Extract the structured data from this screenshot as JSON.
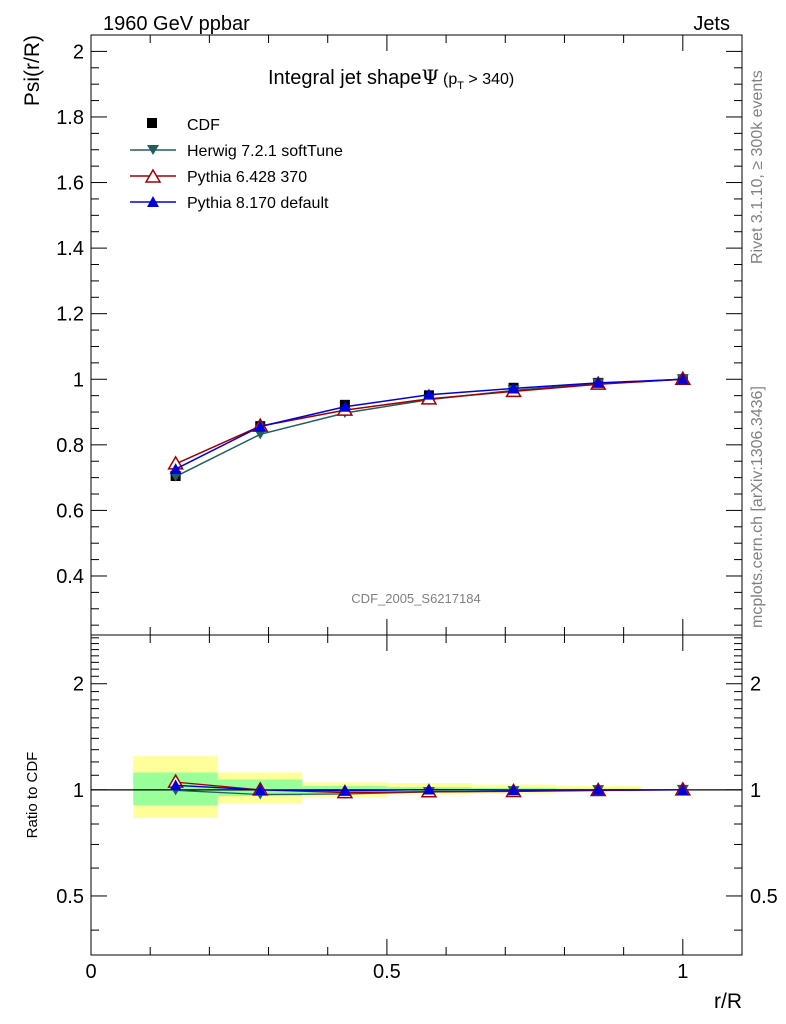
{
  "header": {
    "left": "1960 GeV ppbar",
    "right": "Jets"
  },
  "side": {
    "rivet": "Rivet 3.1.10, ≥ 300k events",
    "mcplots": "mcplots.cern.ch [arXiv:1306.3436]"
  },
  "plot_title": {
    "main": "Integral jet shape",
    "psi": "Ψ",
    "open_paren": "(p",
    "sub": "T",
    "cut": " > 340)"
  },
  "analysis_label": "CDF_2005_S6217184",
  "legend": [
    {
      "key": "cdf",
      "label": "CDF"
    },
    {
      "key": "herwig",
      "label": "Herwig 7.2.1 softTune"
    },
    {
      "key": "py6",
      "label": "Pythia 6.428 370"
    },
    {
      "key": "py8",
      "label": "Pythia 8.170 default"
    }
  ],
  "colors": {
    "cdf": "#000000",
    "herwig": "#1f5f5f",
    "py6": "#a00000",
    "py8": "#0000dd",
    "band_outer": "#ffff99",
    "band_inner": "#99ff99"
  },
  "chart_data": [
    {
      "type": "line",
      "title": "Integral jet shape Ψ (pT > 340)",
      "xlabel": "r/R",
      "ylabel": "Psi(r/R)",
      "xlim": [
        0,
        1.1
      ],
      "ylim": [
        0.22,
        2.05
      ],
      "xticks": [
        {
          "v": 0,
          "label": "0"
        },
        {
          "v": 0.5,
          "label": "0.5"
        },
        {
          "v": 1,
          "label": "1"
        }
      ],
      "yticks": [
        {
          "v": 0.4,
          "label": "0.4"
        },
        {
          "v": 0.6,
          "label": "0.6"
        },
        {
          "v": 0.8,
          "label": "0.8"
        },
        {
          "v": 1.0,
          "label": "1"
        },
        {
          "v": 1.2,
          "label": "1.2"
        },
        {
          "v": 1.4,
          "label": "1.4"
        },
        {
          "v": 1.6,
          "label": "1.6"
        },
        {
          "v": 1.8,
          "label": "1.8"
        },
        {
          "v": 2.0,
          "label": "2"
        }
      ],
      "x": [
        0.143,
        0.286,
        0.429,
        0.571,
        0.714,
        0.857,
        1.0
      ],
      "series": [
        {
          "key": "cdf",
          "name": "CDF",
          "marker": "square",
          "values": [
            0.705,
            0.857,
            0.922,
            0.951,
            0.974,
            0.989,
            1.0
          ]
        },
        {
          "key": "herwig",
          "name": "Herwig 7.2.1 softTune",
          "marker": "triangle-down",
          "values": [
            0.703,
            0.832,
            0.897,
            0.938,
            0.966,
            0.987,
            1.0
          ]
        },
        {
          "key": "py6",
          "name": "Pythia 6.428 370",
          "marker": "triangle-open",
          "values": [
            0.742,
            0.857,
            0.906,
            0.94,
            0.963,
            0.985,
            1.0
          ]
        },
        {
          "key": "py8",
          "name": "Pythia 8.170 default",
          "marker": "triangle-up",
          "values": [
            0.726,
            0.856,
            0.916,
            0.953,
            0.972,
            0.989,
            1.0
          ]
        }
      ]
    },
    {
      "type": "line",
      "title": "",
      "xlabel": "r/R",
      "ylabel": "Ratio to CDF",
      "scale": "log",
      "xlim": [
        0,
        1.1
      ],
      "ylim": [
        0.34,
        2.75
      ],
      "yticks": [
        {
          "v": 0.5,
          "label": "0.5"
        },
        {
          "v": 1,
          "label": "1"
        },
        {
          "v": 2,
          "label": "2"
        }
      ],
      "bands": [
        {
          "x0": 0.0714,
          "x1": 0.2143,
          "outer": [
            0.835,
            1.245
          ],
          "inner": [
            0.905,
            1.12
          ]
        },
        {
          "x0": 0.2143,
          "x1": 0.3571,
          "outer": [
            0.918,
            1.12
          ],
          "inner": [
            0.96,
            1.07
          ]
        },
        {
          "x0": 0.3571,
          "x1": 0.5,
          "outer": [
            0.955,
            1.05
          ],
          "inner": [
            0.975,
            1.025
          ]
        },
        {
          "x0": 0.5,
          "x1": 0.6429,
          "outer": [
            0.97,
            1.045
          ],
          "inner": [
            0.985,
            1.018
          ]
        },
        {
          "x0": 0.6429,
          "x1": 0.7857,
          "outer": [
            0.975,
            1.035
          ],
          "inner": [
            0.99,
            1.012
          ]
        },
        {
          "x0": 0.7857,
          "x1": 0.9286,
          "outer": [
            0.985,
            1.025
          ],
          "inner": [
            0.995,
            1.008
          ]
        }
      ],
      "x": [
        0.143,
        0.286,
        0.429,
        0.571,
        0.714,
        0.857,
        1.0
      ],
      "series": [
        {
          "key": "herwig",
          "name": "Herwig 7.2.1 softTune",
          "marker": "triangle-down",
          "values": [
            0.997,
            0.97,
            0.973,
            0.986,
            0.992,
            0.998,
            1.0
          ]
        },
        {
          "key": "py6",
          "name": "Pythia 6.428 370",
          "marker": "triangle-open",
          "values": [
            1.052,
            1.0,
            0.982,
            0.988,
            0.989,
            0.996,
            1.0
          ]
        },
        {
          "key": "py8",
          "name": "Pythia 8.170 default",
          "marker": "triangle-up",
          "values": [
            1.03,
            0.999,
            0.993,
            1.002,
            0.998,
            1.0,
            1.0
          ]
        }
      ]
    }
  ]
}
